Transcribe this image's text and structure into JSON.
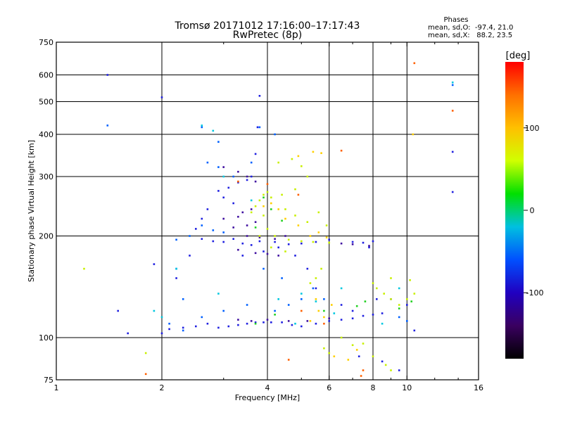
{
  "chart_data": {
    "type": "scatter",
    "title": "Tromsø 20171012 17:16:00–17:17:43",
    "subtitle": "RwPretec (8p)",
    "xlabel": "Frequency [MHz]",
    "ylabel": "Stationary phase Virtual Height [km]",
    "x_scale": "log",
    "y_scale": "log",
    "xlim": [
      1,
      16
    ],
    "ylim": [
      75,
      750
    ],
    "x_ticks": [
      1,
      2,
      4,
      6,
      8,
      10,
      16
    ],
    "y_ticks": [
      75,
      100,
      200,
      300,
      400,
      500,
      600,
      750
    ],
    "x_gridlines": [
      2,
      4,
      6,
      8,
      10
    ],
    "y_gridlines": [
      100,
      200,
      300,
      400,
      500,
      600
    ],
    "grid": true,
    "phase_stats": {
      "heading": "Phases",
      "line_o": "mean, sd,O:  -97.4, 21.0",
      "line_x": "mean, sd,X:   88.2, 23.5"
    },
    "colorbar": {
      "label": "[deg]",
      "ticks": [
        {
          "value": 100,
          "label": "100"
        },
        {
          "value": 0,
          "label": "0"
        },
        {
          "value": -100,
          "label": "-100"
        }
      ],
      "range": [
        -180,
        180
      ],
      "colormap": [
        "#000000",
        "#3a0060",
        "#2000c0",
        "#0050ff",
        "#00c0e0",
        "#00e000",
        "#d0ff00",
        "#ffc000",
        "#ff7000",
        "#ff0000"
      ]
    },
    "series": [
      {
        "phase_deg": -100,
        "color": "#2020e0",
        "points": [
          [
            2.0,
            103
          ],
          [
            2.1,
            106
          ],
          [
            2.3,
            107
          ],
          [
            2.5,
            108
          ],
          [
            2.7,
            110
          ],
          [
            2.9,
            107
          ],
          [
            3.1,
            108
          ],
          [
            3.3,
            109
          ],
          [
            3.5,
            110
          ],
          [
            3.7,
            111
          ],
          [
            3.9,
            111
          ],
          [
            4.1,
            111
          ],
          [
            4.4,
            111
          ],
          [
            4.7,
            109
          ],
          [
            5.0,
            108
          ],
          [
            5.5,
            110
          ],
          [
            6.0,
            112
          ],
          [
            6.5,
            113
          ],
          [
            7.0,
            114
          ],
          [
            7.5,
            116
          ],
          [
            8.0,
            117
          ],
          [
            2.6,
            196
          ],
          [
            2.8,
            193
          ],
          [
            3.0,
            192
          ],
          [
            3.2,
            196
          ],
          [
            3.4,
            190
          ],
          [
            3.6,
            188
          ],
          [
            3.8,
            193
          ],
          [
            4.2,
            192
          ],
          [
            4.6,
            189
          ],
          [
            5.0,
            190
          ],
          [
            5.5,
            192
          ],
          [
            6.0,
            195
          ],
          [
            7.0,
            192
          ],
          [
            7.5,
            191
          ],
          [
            8.0,
            193
          ],
          [
            2.9,
            272
          ],
          [
            3.1,
            278
          ],
          [
            3.3,
            288
          ],
          [
            3.5,
            293
          ],
          [
            3.6,
            300
          ],
          [
            3.7,
            350
          ],
          [
            3.75,
            420
          ],
          [
            3.8,
            520
          ],
          [
            2.5,
            210
          ],
          [
            2.6,
            225
          ],
          [
            2.7,
            240
          ],
          [
            3.0,
            260
          ],
          [
            3.2,
            250
          ],
          [
            5.5,
            140
          ],
          [
            6.5,
            125
          ],
          [
            7.0,
            120
          ],
          [
            8.5,
            118
          ],
          [
            9.0,
            130
          ],
          [
            10.0,
            125
          ],
          [
            10.5,
            105
          ],
          [
            1.9,
            165
          ],
          [
            2.2,
            150
          ],
          [
            1.6,
            103
          ],
          [
            1.5,
            120
          ],
          [
            3.4,
            175
          ],
          [
            3.9,
            180
          ],
          [
            4.3,
            185
          ],
          [
            4.8,
            175
          ],
          [
            5.2,
            160
          ],
          [
            2.4,
            175
          ],
          [
            7.8,
            185
          ],
          [
            8.2,
            130
          ],
          [
            7.3,
            88
          ],
          [
            8.5,
            85
          ],
          [
            9.5,
            80
          ],
          [
            1.4,
            600
          ],
          [
            2.0,
            515
          ],
          [
            13.5,
            355
          ],
          [
            13.5,
            270
          ]
        ]
      },
      {
        "phase_deg": -140,
        "color": "#4010a0",
        "points": [
          [
            3.3,
            113
          ],
          [
            3.6,
            112
          ],
          [
            4.0,
            113
          ],
          [
            4.6,
            112
          ],
          [
            5.2,
            112
          ],
          [
            6.0,
            114
          ],
          [
            3.4,
            235
          ],
          [
            3.6,
            240
          ],
          [
            3.3,
            228
          ],
          [
            3.0,
            225
          ],
          [
            3.2,
            212
          ],
          [
            3.5,
            215
          ],
          [
            3.7,
            220
          ],
          [
            3.5,
            200
          ],
          [
            3.8,
            198
          ],
          [
            4.2,
            196
          ],
          [
            4.5,
            200
          ],
          [
            6.5,
            190
          ],
          [
            7.0,
            189
          ],
          [
            7.8,
            187
          ],
          [
            3.3,
            182
          ],
          [
            3.7,
            178
          ],
          [
            4.0,
            177
          ],
          [
            4.3,
            175
          ],
          [
            3.7,
            290
          ],
          [
            3.5,
            300
          ],
          [
            3.3,
            310
          ],
          [
            3.0,
            320
          ]
        ]
      },
      {
        "phase_deg": -80,
        "color": "#0060ff",
        "points": [
          [
            2.1,
            110
          ],
          [
            2.3,
            105
          ],
          [
            2.6,
            115
          ],
          [
            3.0,
            120
          ],
          [
            3.5,
            125
          ],
          [
            4.2,
            120
          ],
          [
            4.6,
            125
          ],
          [
            5.0,
            130
          ],
          [
            2.2,
            195
          ],
          [
            2.4,
            200
          ],
          [
            2.6,
            215
          ],
          [
            2.8,
            208
          ],
          [
            3.0,
            205
          ],
          [
            2.7,
            330
          ],
          [
            2.9,
            320
          ],
          [
            3.2,
            300
          ],
          [
            2.9,
            380
          ],
          [
            3.6,
            330
          ],
          [
            3.8,
            420
          ],
          [
            4.2,
            400
          ],
          [
            5.4,
            140
          ],
          [
            5.8,
            130
          ],
          [
            9.5,
            115
          ],
          [
            10.0,
            112
          ],
          [
            2.3,
            130
          ],
          [
            2.2,
            160
          ],
          [
            3.9,
            160
          ],
          [
            4.4,
            150
          ],
          [
            1.4,
            425
          ],
          [
            2.6,
            420
          ],
          [
            13.5,
            560
          ]
        ]
      },
      {
        "phase_deg": -20,
        "color": "#00c8e0",
        "points": [
          [
            2.0,
            115
          ],
          [
            2.2,
            160
          ],
          [
            2.8,
            410
          ],
          [
            2.6,
            425
          ],
          [
            3.6,
            255
          ],
          [
            3.0,
            300
          ],
          [
            4.3,
            130
          ],
          [
            5.0,
            135
          ],
          [
            5.5,
            128
          ],
          [
            6.2,
            118
          ],
          [
            8.5,
            110
          ],
          [
            9.5,
            140
          ],
          [
            1.9,
            120
          ],
          [
            2.9,
            135
          ],
          [
            4.8,
            110
          ],
          [
            6.5,
            140
          ],
          [
            13.5,
            570
          ]
        ]
      },
      {
        "phase_deg": 20,
        "color": "#20d020",
        "points": [
          [
            3.7,
            110
          ],
          [
            4.2,
            117
          ],
          [
            5.8,
            120
          ],
          [
            7.2,
            124
          ],
          [
            7.6,
            128
          ],
          [
            9.5,
            122
          ],
          [
            10.3,
            128
          ],
          [
            3.9,
            260
          ],
          [
            4.1,
            240
          ],
          [
            4.4,
            222
          ],
          [
            3.7,
            212
          ]
        ]
      },
      {
        "phase_deg": 70,
        "color": "#c8f000",
        "points": [
          [
            3.6,
            235
          ],
          [
            3.7,
            245
          ],
          [
            3.8,
            255
          ],
          [
            3.9,
            265
          ],
          [
            4.0,
            270
          ],
          [
            4.1,
            260
          ],
          [
            3.9,
            230
          ],
          [
            4.0,
            210
          ],
          [
            4.2,
            200
          ],
          [
            4.6,
            195
          ],
          [
            5.0,
            193
          ],
          [
            5.4,
            192
          ],
          [
            6.0,
            191
          ],
          [
            4.5,
            240
          ],
          [
            4.8,
            230
          ],
          [
            5.2,
            220
          ],
          [
            5.6,
            235
          ],
          [
            5.9,
            215
          ],
          [
            4.4,
            265
          ],
          [
            4.8,
            275
          ],
          [
            5.2,
            300
          ],
          [
            3.8,
            200
          ],
          [
            4.1,
            185
          ],
          [
            4.5,
            180
          ],
          [
            8.2,
            140
          ],
          [
            8.6,
            135
          ],
          [
            9.0,
            130
          ],
          [
            9.5,
            125
          ],
          [
            10.0,
            130
          ],
          [
            10.5,
            135
          ],
          [
            10.2,
            148
          ],
          [
            9.0,
            150
          ],
          [
            8.0,
            145
          ],
          [
            5.7,
            160
          ],
          [
            5.5,
            150
          ],
          [
            5.3,
            145
          ],
          [
            6.5,
            100
          ],
          [
            7.0,
            95
          ],
          [
            7.5,
            96
          ],
          [
            6.0,
            90
          ],
          [
            5.8,
            93
          ],
          [
            8.0,
            88
          ],
          [
            8.7,
            83
          ],
          [
            9.0,
            80
          ],
          [
            4.7,
            338
          ],
          [
            4.3,
            330
          ],
          [
            5.0,
            322
          ],
          [
            1.8,
            90
          ],
          [
            1.2,
            160
          ]
        ]
      },
      {
        "phase_deg": 110,
        "color": "#ffd000",
        "points": [
          [
            3.9,
            245
          ],
          [
            4.1,
            250
          ],
          [
            4.3,
            240
          ],
          [
            4.5,
            225
          ],
          [
            4.9,
            215
          ],
          [
            5.3,
            200
          ],
          [
            5.6,
            205
          ],
          [
            5.9,
            198
          ],
          [
            5.5,
            130
          ],
          [
            5.6,
            120
          ],
          [
            5.8,
            115
          ],
          [
            5.3,
            112
          ],
          [
            6.1,
            125
          ],
          [
            4.9,
            345
          ],
          [
            5.4,
            355
          ],
          [
            5.7,
            352
          ],
          [
            6.2,
            88
          ],
          [
            6.8,
            86
          ],
          [
            7.2,
            92
          ],
          [
            10.4,
            400
          ]
        ]
      },
      {
        "phase_deg": 150,
        "color": "#ff6000",
        "points": [
          [
            3.3,
            290
          ],
          [
            4.0,
            285
          ],
          [
            4.9,
            265
          ],
          [
            5.0,
            120
          ],
          [
            5.8,
            110
          ],
          [
            7.5,
            80
          ],
          [
            10.5,
            650
          ],
          [
            13.5,
            470
          ],
          [
            6.5,
            358
          ],
          [
            1.8,
            78
          ],
          [
            4.6,
            86
          ],
          [
            7.4,
            77
          ]
        ]
      }
    ]
  }
}
